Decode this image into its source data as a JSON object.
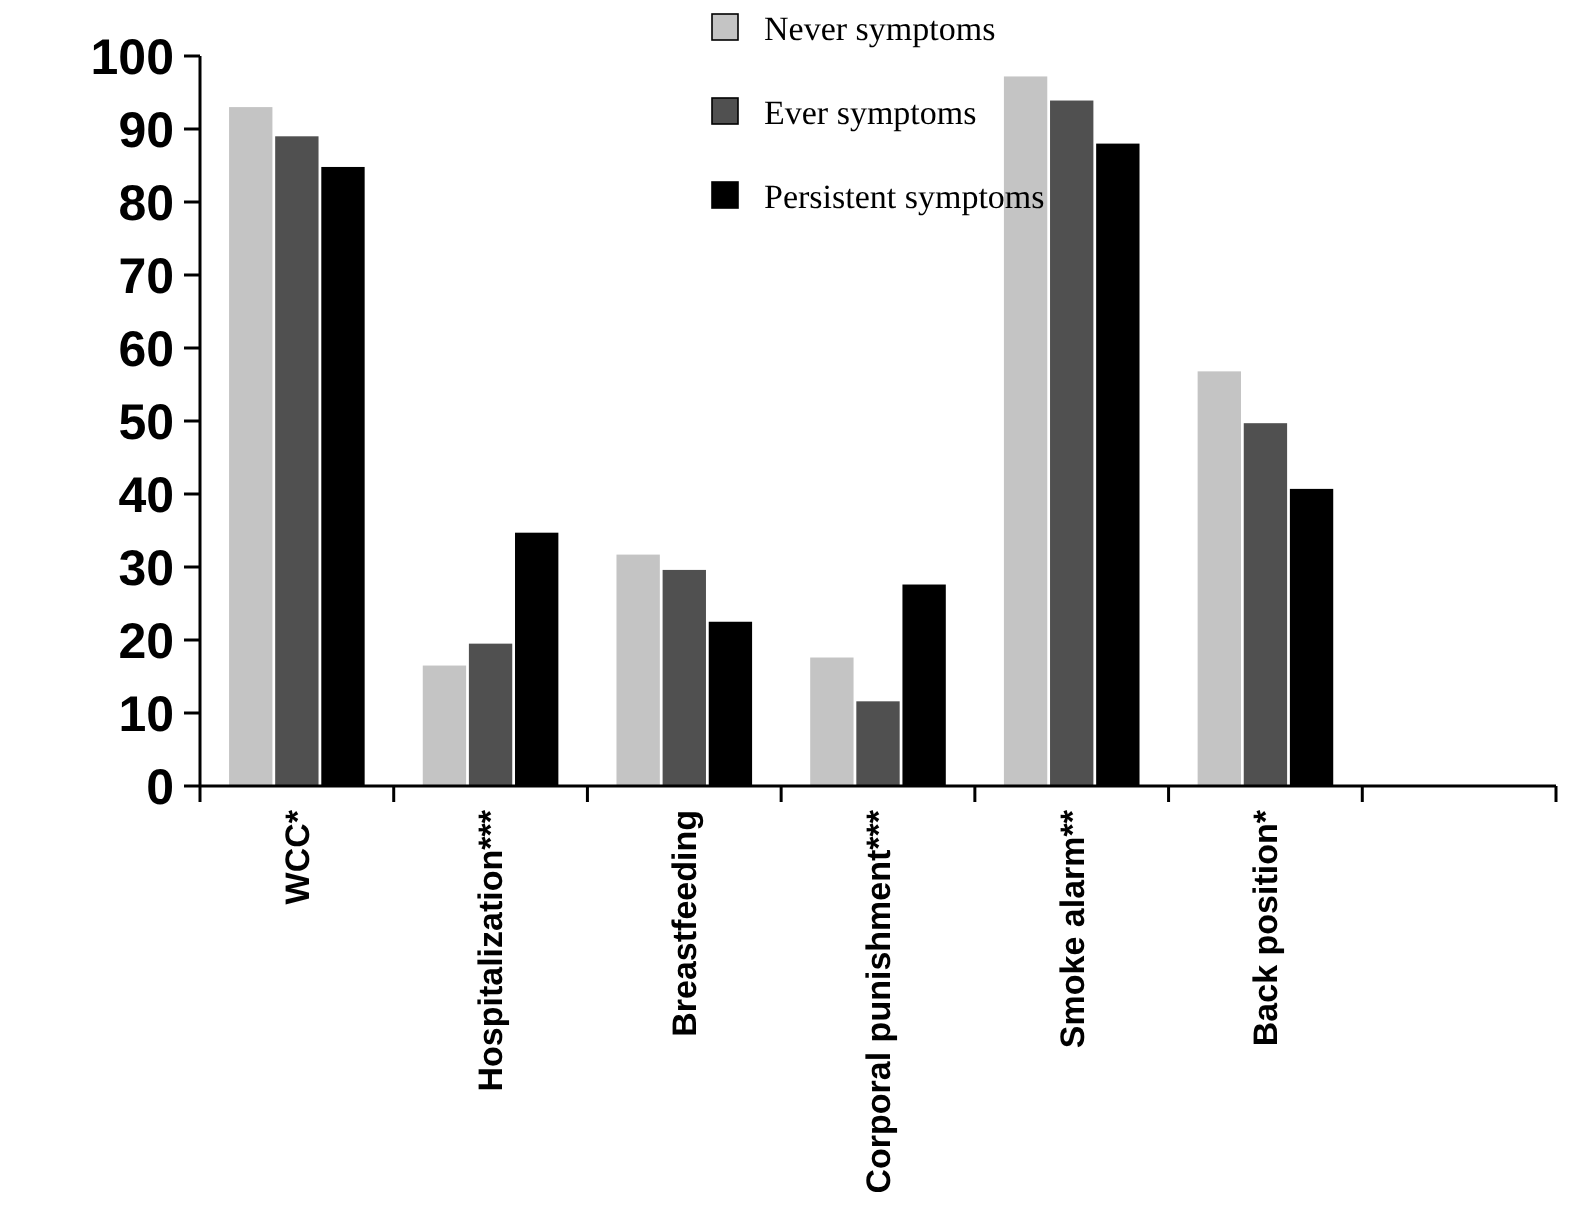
{
  "chart_data": {
    "type": "bar",
    "categories": [
      "WCC*",
      "Hospitalization***",
      "Breastfeeding",
      "Corporal punishment***",
      "Smoke alarm**",
      "Back position*",
      null
    ],
    "series": [
      {
        "name": "Never symptoms",
        "color": "#c4c4c4",
        "values": [
          93,
          16.5,
          31.7,
          17.6,
          97.2,
          56.8,
          null
        ]
      },
      {
        "name": "Ever symptoms",
        "color": "#505050",
        "values": [
          89,
          19.5,
          29.6,
          11.6,
          93.9,
          49.7,
          null
        ]
      },
      {
        "name": "Persistent symptoms",
        "color": "#000000",
        "values": [
          84.8,
          34.7,
          22.5,
          27.6,
          88,
          40.7,
          null
        ]
      }
    ],
    "ylim": [
      0,
      100
    ],
    "yticks": [
      0,
      10,
      20,
      30,
      40,
      50,
      60,
      70,
      80,
      90,
      100
    ],
    "grid": false,
    "legend": "top"
  }
}
